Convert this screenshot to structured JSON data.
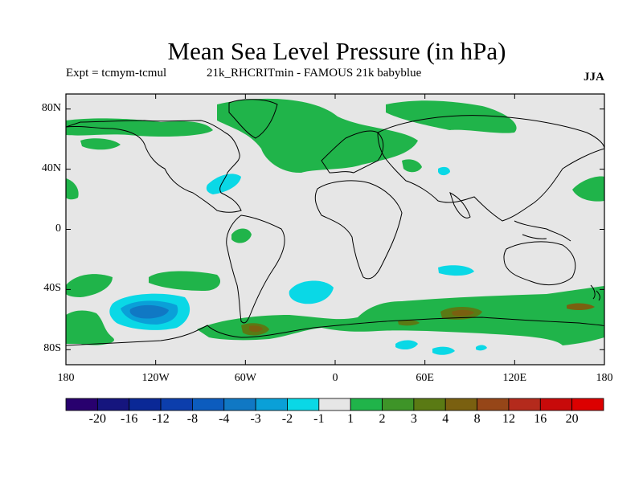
{
  "chart_data": {
    "type": "heatmap",
    "title": "Mean Sea Level Pressure (in hPa)",
    "subtitle_left": "Expt = tcmym-tcmul",
    "subtitle_mid": "21k_RHCRITmin - FAMOUS 21k babyblue",
    "season": "JJA",
    "units": "hPa",
    "xlim": [
      -180,
      180
    ],
    "ylim": [
      -90,
      90
    ],
    "lon_ticks": [
      {
        "value": -180,
        "label": "180"
      },
      {
        "value": -120,
        "label": "120W"
      },
      {
        "value": -60,
        "label": "60W"
      },
      {
        "value": 0,
        "label": "0"
      },
      {
        "value": 60,
        "label": "60E"
      },
      {
        "value": 120,
        "label": "120E"
      },
      {
        "value": 180,
        "label": "180"
      }
    ],
    "lat_ticks": [
      {
        "value": 80,
        "label": "80N"
      },
      {
        "value": 40,
        "label": "40N"
      },
      {
        "value": 0,
        "label": "0"
      },
      {
        "value": -40,
        "label": "40S"
      },
      {
        "value": -80,
        "label": "80S"
      }
    ],
    "colorbar": {
      "boundaries": [
        "-20",
        "-16",
        "-12",
        "-8",
        "-4",
        "-3",
        "-2",
        "-1",
        "1",
        "2",
        "3",
        "4",
        "8",
        "12",
        "16",
        "20"
      ],
      "colors": [
        "#28006e",
        "#15157e",
        "#0a2896",
        "#0c3eac",
        "#0c5cbe",
        "#1078c4",
        "#0aa0d8",
        "#0ad8e6",
        "#e6e6e6",
        "#20b44a",
        "#3e9428",
        "#5a7a14",
        "#7a6010",
        "#964618",
        "#b42a1c",
        "#c80a0a",
        "#dc0000"
      ]
    },
    "regions": [
      {
        "name": "north-atlantic-arctic-high",
        "category": "1 to 2",
        "lon": -15,
        "lat": 72
      },
      {
        "name": "pacific-arctic-high",
        "category": "1 to 2",
        "lon": -130,
        "lat": 72
      },
      {
        "name": "east-siberia-arctic-high",
        "category": "1 to 2",
        "lon": 75,
        "lat": 78
      },
      {
        "name": "north-pacific-west-high",
        "category": "1 to 2",
        "lon": -178,
        "lat": 29
      },
      {
        "name": "north-pacific-east-high",
        "category": "1 to 2",
        "lon": 172,
        "lat": 28
      },
      {
        "name": "caspian-high",
        "category": "1 to 2",
        "lon": 55,
        "lat": 42
      },
      {
        "name": "west-atlantic-low",
        "category": "-2 to -1",
        "lon": -70,
        "lat": 32
      },
      {
        "name": "black-sea-low",
        "category": "-2 to -1",
        "lon": 73,
        "lat": 40
      },
      {
        "name": "tropical-south-atlantic-high",
        "category": "1 to 2",
        "lon": -60,
        "lat": -5
      },
      {
        "name": "south-pacific-high",
        "category": "1 to 2",
        "lon": -140,
        "lat": -40
      },
      {
        "name": "southeast-pacific-high",
        "category": "1 to 2",
        "lon": -90,
        "lat": -34
      },
      {
        "name": "south-atlantic-low",
        "category": "-2 to -1",
        "lon": -12,
        "lat": -40
      },
      {
        "name": "indian-ocean-low",
        "category": "-2 to -1",
        "lon": 82,
        "lat": -28
      },
      {
        "name": "southern-pacific-low",
        "category": "-8 to -4",
        "lon": -125,
        "lat": -57
      },
      {
        "name": "southern-ocean-high-belt",
        "category": "1 to 3",
        "lon": 60,
        "lat": -63
      },
      {
        "name": "indian-sector-high-core",
        "category": "3 to 8",
        "lon": 85,
        "lat": -58
      },
      {
        "name": "weddell-high-core",
        "category": "3 to 4",
        "lon": -55,
        "lat": -67
      },
      {
        "name": "ross-sea-high-core",
        "category": "3 to 8",
        "lon": 165,
        "lat": -52
      },
      {
        "name": "antarctic-low-1",
        "category": "-2 to -1",
        "lon": 45,
        "lat": -78
      },
      {
        "name": "antarctic-low-2",
        "category": "-2 to -1",
        "lon": 75,
        "lat": -81
      }
    ]
  }
}
